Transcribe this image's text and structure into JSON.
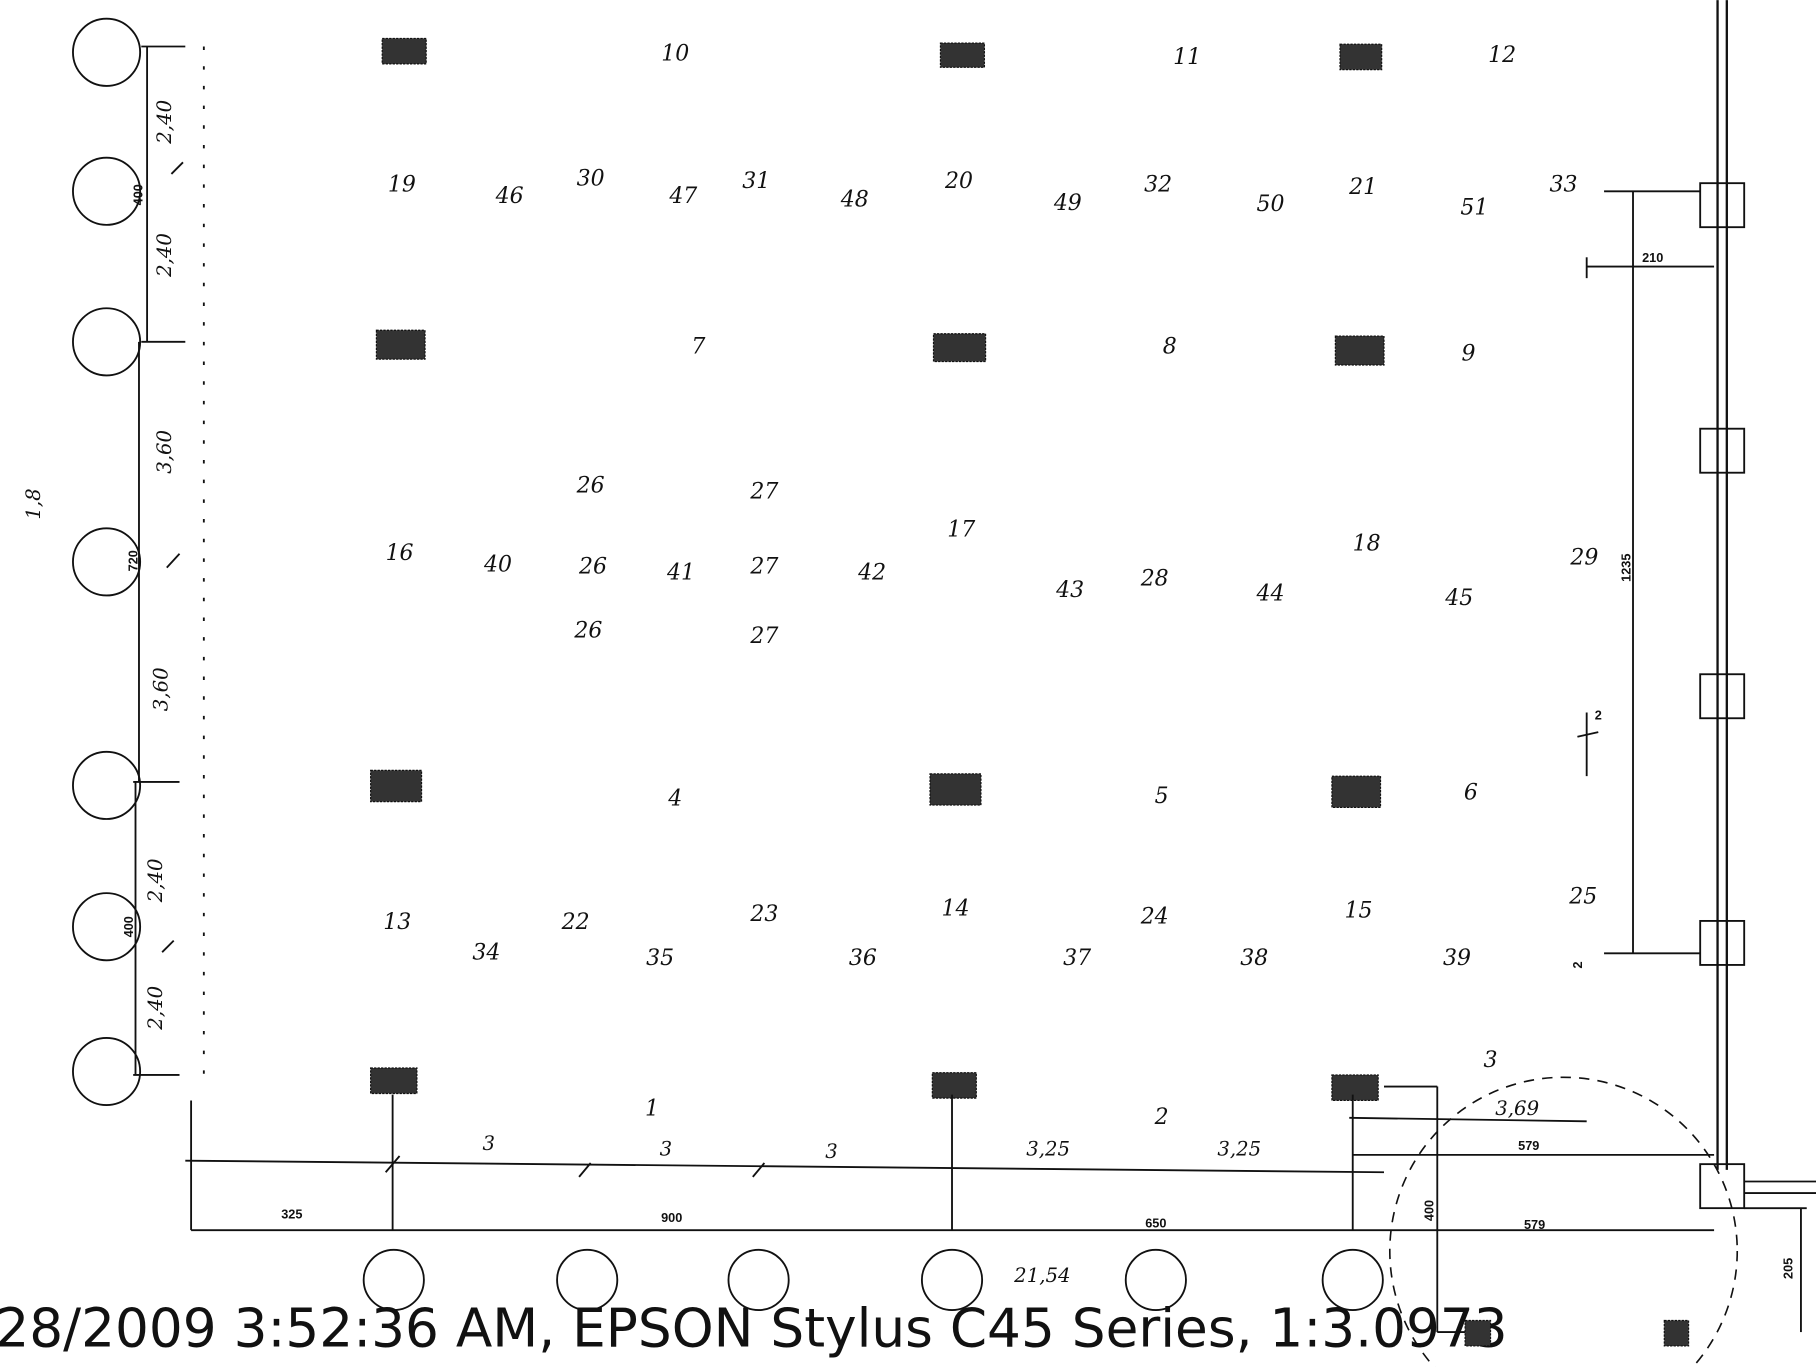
{
  "room_numbers": [
    "10",
    "11",
    "12",
    "19",
    "46",
    "30",
    "47",
    "31",
    "48",
    "20",
    "49",
    "32",
    "50",
    "21",
    "51",
    "33",
    "7",
    "8",
    "9",
    "26",
    "27",
    "16",
    "40",
    "26",
    "41",
    "27",
    "42",
    "17",
    "43",
    "28",
    "44",
    "18",
    "45",
    "29",
    "26",
    "27",
    "4",
    "5",
    "6",
    "13",
    "34",
    "22",
    "35",
    "23",
    "36",
    "14",
    "37",
    "24",
    "38",
    "15",
    "39",
    "25",
    "3",
    "1",
    "2"
  ],
  "dimensions": [
    "2,40",
    "400",
    "2,40",
    "3,60",
    "720",
    "3,60",
    "2,40",
    "400",
    "2,40",
    "1,8",
    "210",
    "1235",
    "2",
    "2",
    "3,69",
    "579",
    "579",
    "400",
    "205",
    "325",
    "900",
    "650",
    "3",
    "3",
    "3",
    "3,25",
    "3,25",
    "21,54"
  ],
  "footer": "28/2009 3:52:36 AM, EPSON Stylus C45 Series, 1:3.0973"
}
